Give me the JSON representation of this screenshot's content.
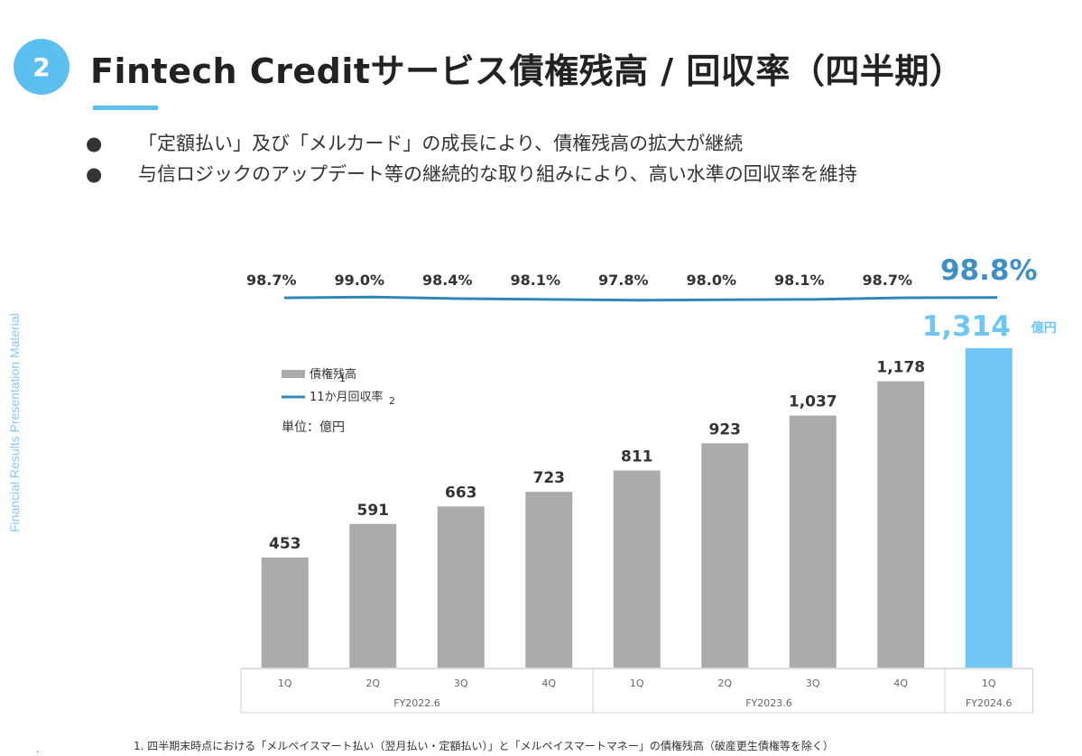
{
  "header": {
    "badge": "2",
    "title": "Fintech Creditサービス債権残高 / 回収率（四半期）"
  },
  "bullets": [
    "「定額払い」及び「メルカード」の成長により、債権残高の拡大が継続",
    "与信ロジックのアップデート等の継続的な取り組みにより、高い水準の回収率を維持"
  ],
  "side_label": "Financial Results Presentation Material",
  "footnote": "1. 四半期末時点における「メルペイスマート払い（翌月払い・定額払い）」と「メルペイスマートマネー」の債権残高（破産更生債権等を除く）",
  "footnote_mark": ".",
  "colors": {
    "accent": "#5bc0f0",
    "bar": "#ababab",
    "bar_highlight": "#6ec6f5",
    "line": "#2f87b8",
    "highlight_text": "#3d8fc4"
  },
  "chart_data": {
    "type": "bar",
    "categories": [
      "1Q",
      "2Q",
      "3Q",
      "4Q",
      "1Q",
      "2Q",
      "3Q",
      "4Q",
      "1Q"
    ],
    "groups": [
      {
        "label": "FY2022.6",
        "count": 4
      },
      {
        "label": "FY2023.6",
        "count": 4
      },
      {
        "label": "FY2024.6",
        "count": 1
      }
    ],
    "series": [
      {
        "name": "債権残高",
        "name_suffix": "1",
        "type": "bar",
        "values": [
          453,
          591,
          663,
          723,
          811,
          923,
          1037,
          1178,
          1314
        ],
        "labels": [
          "453",
          "591",
          "663",
          "723",
          "811",
          "923",
          "1,037",
          "1,178",
          "1,314"
        ]
      },
      {
        "name": "11か月回収率",
        "name_suffix": "2",
        "type": "line",
        "values": [
          98.7,
          99.0,
          98.4,
          98.1,
          97.8,
          98.0,
          98.1,
          98.7,
          98.8
        ],
        "labels": [
          "98.7%",
          "99.0%",
          "98.4%",
          "98.1%",
          "97.8%",
          "98.0%",
          "98.1%",
          "98.7%",
          "98.8%"
        ]
      }
    ],
    "highlight_index": 8,
    "highlight_unit": "億円",
    "unit_label": "単位：億円",
    "ylim": [
      0,
      1400
    ],
    "grid": false
  }
}
